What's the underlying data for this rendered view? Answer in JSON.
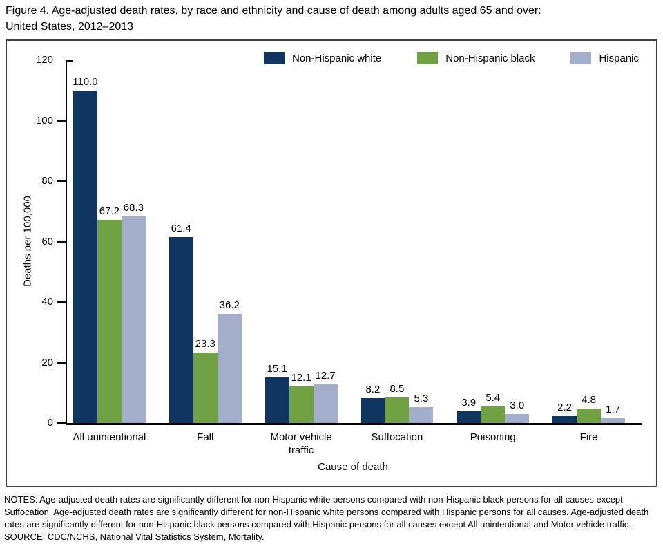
{
  "title": {
    "line1": "Figure 4. Age-adjusted death rates, by race and ethnicity and cause of death among adults aged 65 and over:",
    "line2": "United States, 2012–2013"
  },
  "colors": {
    "non_hispanic_white": "#0f3560",
    "non_hispanic_black": "#70a244",
    "hispanic": "#a3aecb",
    "axis": "#000000",
    "box_border": "#404040"
  },
  "chart_data": {
    "type": "bar",
    "title": "Age-adjusted death rates, by race and ethnicity and cause of death among adults aged 65 and over: United States, 2012–2013",
    "categories": [
      "All unintentional",
      "Fall",
      "Motor vehicle traffic",
      "Suffocation",
      "Poisoning",
      "Fire"
    ],
    "series": [
      {
        "name": "Non-Hispanic white",
        "color": "#0f3560",
        "values": [
          110.0,
          61.4,
          15.1,
          8.2,
          3.9,
          2.2
        ]
      },
      {
        "name": "Non-Hispanic black",
        "color": "#70a244",
        "values": [
          67.2,
          23.3,
          12.1,
          8.5,
          5.4,
          4.8
        ]
      },
      {
        "name": "Hispanic",
        "color": "#a3aecb",
        "values": [
          68.3,
          36.2,
          12.7,
          5.3,
          3.0,
          1.7
        ]
      }
    ],
    "xlabel": "Cause of death",
    "ylabel": "Deaths per 100,000",
    "ylim": [
      0,
      120
    ],
    "yticks": [
      0,
      20,
      40,
      60,
      80,
      100,
      120
    ],
    "grid": false,
    "legend_position": "top",
    "value_labels": true
  },
  "notes": "NOTES: Age-adjusted death rates are significantly different for non-Hispanic white persons compared with non-Hispanic black persons for all causes except Suffocation. Age-adjusted death rates are significantly different for non-Hispanic white persons compared with Hispanic persons for all causes. Age-adjusted death rates are significantly different for non-Hispanic black persons compared with Hispanic persons for all causes except All unintentional and Motor vehicle traffic.",
  "source": "SOURCE: CDC/NCHS, National Vital Statistics System, Mortality."
}
